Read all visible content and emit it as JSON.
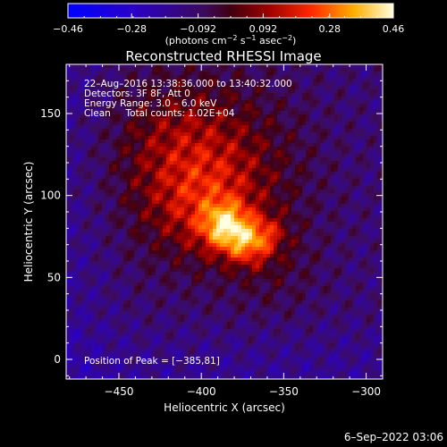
{
  "chart_data": {
    "type": "heatmap",
    "title": "Reconstructed RHESSI Image",
    "xlabel": "Heliocentric X (arcsec)",
    "ylabel": "Heliocentric Y (arcsec)",
    "xlim": [
      -482,
      -290
    ],
    "ylim": [
      -12,
      180
    ],
    "xticks": [
      -450,
      -400,
      -350,
      -300
    ],
    "xtick_labels": [
      "−450",
      "−400",
      "−350",
      "−300"
    ],
    "yticks": [
      0,
      50,
      100,
      150
    ],
    "ytick_labels": [
      "0",
      "50",
      "100",
      "150"
    ],
    "peak": [
      -385,
      81
    ],
    "colorbar": {
      "min": -0.46,
      "max": 0.46,
      "ticks": [
        -0.46,
        -0.28,
        -0.092,
        0.092,
        0.28,
        0.46
      ],
      "tick_labels": [
        "−0.46",
        "−0.28",
        "−0.092",
        "0.092",
        "0.28",
        "0.46"
      ],
      "unit_main": "(photons cm",
      "unit_sup1": "−2",
      "unit_mid1": " s",
      "unit_sup2": "−1",
      "unit_mid2": " asec",
      "unit_sup3": "−2",
      "unit_end": ")"
    },
    "annotations": [
      "22–Aug–2016 13:38:36.000 to 13:40:32.000",
      "Detectors: 3F 8F, Att 0",
      "Energy Range: 3.0 – 6.0 keV",
      "Clean     Total counts: 1.02E+04"
    ],
    "peak_label": "Position of Peak = [−385,81]"
  },
  "footer": {
    "date": "6–Sep–2022 03:06"
  }
}
